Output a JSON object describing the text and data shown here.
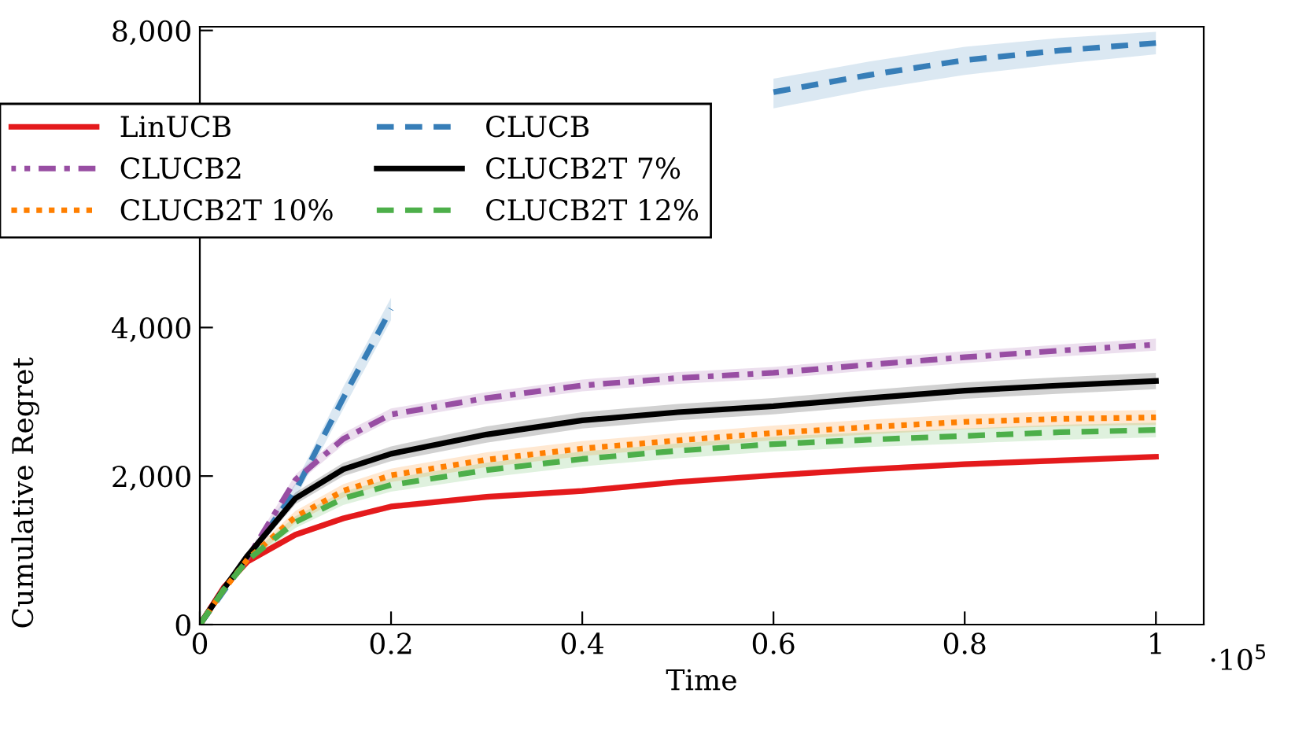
{
  "chart_data": {
    "type": "line",
    "xlabel": "Time",
    "ylabel": "Cumulative Regret",
    "annotations": [
      "·10$^{5}$"
    ],
    "x": [
      0,
      0.025,
      0.05,
      0.1,
      0.15,
      0.2,
      0.3,
      0.4,
      0.5,
      0.6,
      0.7,
      0.8,
      0.9,
      1
    ],
    "xlim": [
      0,
      1.05
    ],
    "ylim": [
      0,
      8050
    ],
    "xticks": [
      0,
      0.2,
      0.4,
      0.6,
      0.8,
      1
    ],
    "yticks": [
      {
        "value": 0,
        "label": "0"
      },
      {
        "value": 2000,
        "label": "2,000"
      },
      {
        "value": 4000,
        "label": "4,000"
      },
      {
        "value": 8000,
        "label": "8,000"
      }
    ],
    "grid": false,
    "legend": "top left",
    "marker": "none",
    "series": [
      {
        "name": "LinUCB",
        "color": "#e41a1c",
        "line_style": "solid",
        "values": [
          0,
          500,
          850,
          1210,
          1430,
          1590,
          1720,
          1800,
          1920,
          2010,
          2090,
          2160,
          2210,
          2260
        ],
        "lower": [
          0,
          480,
          820,
          1170,
          1390,
          1550,
          1680,
          1760,
          1880,
          1970,
          2050,
          2120,
          2170,
          2220
        ],
        "upper": [
          0,
          520,
          880,
          1250,
          1470,
          1630,
          1760,
          1840,
          1960,
          2050,
          2130,
          2200,
          2250,
          2300
        ]
      },
      {
        "name": "CLUCB",
        "color": "#377eb8",
        "line_style": "dashed",
        "values": [
          0,
          450,
          900,
          1800,
          3050,
          4250,
          null,
          null,
          null,
          7170,
          7400,
          7600,
          7730,
          7830
        ],
        "lower": [
          0,
          420,
          850,
          1700,
          2900,
          4100,
          null,
          null,
          null,
          6950,
          7200,
          7400,
          7550,
          7680
        ],
        "upper": [
          0,
          480,
          950,
          1900,
          3200,
          4400,
          null,
          null,
          null,
          7350,
          7580,
          7780,
          7900,
          7980
        ]
      },
      {
        "name": "CLUCB2",
        "color": "#984ea3",
        "line_style": "dashdot",
        "values": [
          0,
          480,
          900,
          1950,
          2500,
          2830,
          3050,
          3220,
          3320,
          3390,
          3500,
          3600,
          3690,
          3770
        ],
        "lower": [
          0,
          450,
          850,
          1880,
          2420,
          2750,
          2970,
          3140,
          3240,
          3310,
          3420,
          3520,
          3610,
          3690
        ],
        "upper": [
          0,
          510,
          950,
          2020,
          2580,
          2910,
          3130,
          3300,
          3400,
          3470,
          3580,
          3680,
          3770,
          3850
        ]
      },
      {
        "name": "CLUCB2T 7%",
        "color": "#000000",
        "line_style": "solid",
        "values": [
          0,
          480,
          930,
          1700,
          2090,
          2300,
          2560,
          2750,
          2860,
          2940,
          3050,
          3150,
          3220,
          3280
        ],
        "lower": [
          0,
          450,
          880,
          1620,
          2000,
          2200,
          2450,
          2640,
          2750,
          2830,
          2940,
          3040,
          3110,
          3170
        ],
        "upper": [
          0,
          510,
          980,
          1780,
          2180,
          2400,
          2670,
          2860,
          2970,
          3050,
          3160,
          3260,
          3330,
          3390
        ]
      },
      {
        "name": "CLUCB2T 10%",
        "color": "#ff7f00",
        "line_style": "dotted",
        "values": [
          0,
          470,
          880,
          1450,
          1800,
          2010,
          2220,
          2370,
          2480,
          2580,
          2660,
          2730,
          2770,
          2790
        ],
        "lower": [
          0,
          440,
          830,
          1370,
          1710,
          1920,
          2120,
          2270,
          2380,
          2480,
          2560,
          2630,
          2670,
          2690
        ],
        "upper": [
          0,
          500,
          930,
          1530,
          1890,
          2100,
          2320,
          2470,
          2580,
          2680,
          2760,
          2830,
          2870,
          2890
        ]
      },
      {
        "name": "CLUCB2T 12%",
        "color": "#4daf4a",
        "line_style": "dashed",
        "values": [
          0,
          470,
          870,
          1380,
          1700,
          1880,
          2080,
          2230,
          2340,
          2430,
          2490,
          2540,
          2590,
          2620
        ],
        "lower": [
          0,
          440,
          820,
          1300,
          1610,
          1790,
          1980,
          2130,
          2240,
          2330,
          2390,
          2440,
          2490,
          2520
        ],
        "upper": [
          0,
          500,
          920,
          1460,
          1790,
          1970,
          2180,
          2330,
          2440,
          2530,
          2590,
          2640,
          2690,
          2720
        ]
      }
    ]
  }
}
